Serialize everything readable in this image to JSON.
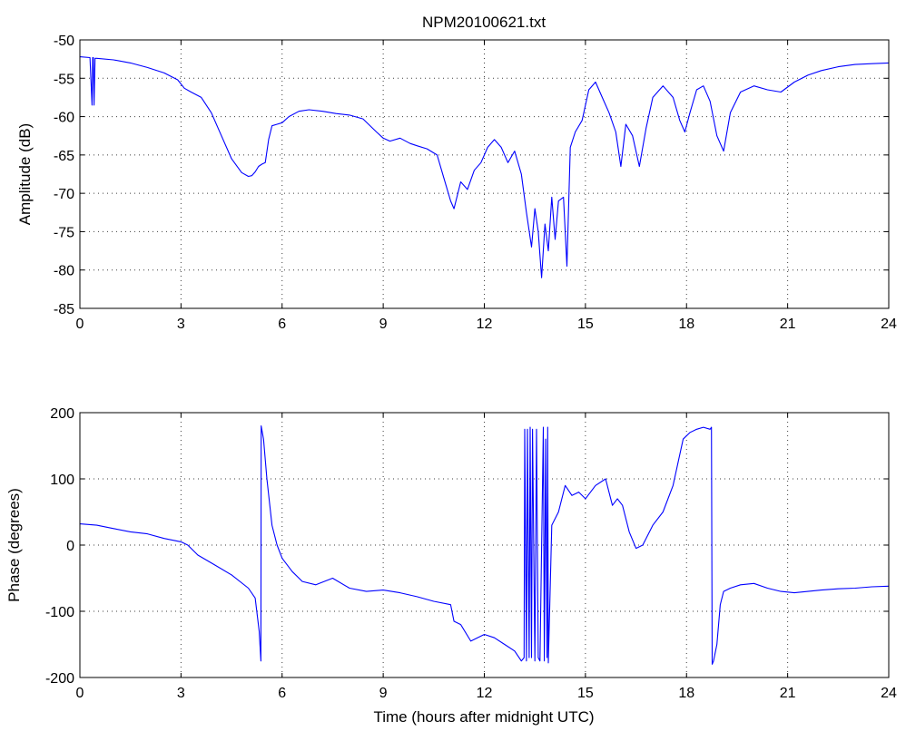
{
  "title": "NPM20100621.txt",
  "colors": {
    "series": "#0000ff",
    "axes": "#000000",
    "background": "#ffffff"
  },
  "chart_data": [
    {
      "type": "line",
      "title": "NPM20100621.txt",
      "xlabel": "",
      "ylabel": "Amplitude (dB)",
      "xlim": [
        0,
        24
      ],
      "ylim": [
        -85,
        -50
      ],
      "xticks": [
        "0",
        "3",
        "6",
        "9",
        "12",
        "15",
        "18",
        "21",
        "24"
      ],
      "yticks": [
        "-50",
        "-55",
        "-60",
        "-65",
        "-70",
        "-75",
        "-80",
        "-85"
      ],
      "grid": true,
      "series": [
        {
          "x": [
            0,
            0.3,
            0.36,
            0.38,
            0.4,
            0.42,
            0.45,
            0.5,
            1,
            1.5,
            2,
            2.5,
            2.9,
            3.1,
            3.3,
            3.6,
            3.9,
            4.2,
            4.5,
            4.8,
            5.0,
            5.1,
            5.2,
            5.3,
            5.4,
            5.5,
            5.6,
            5.7,
            5.85,
            6.0,
            6.2,
            6.5,
            6.8,
            7.2,
            7.6,
            8.0,
            8.4,
            8.8,
            9.0,
            9.2,
            9.5,
            9.8,
            10.0,
            10.3,
            10.6,
            10.8,
            11.0,
            11.1,
            11.3,
            11.5,
            11.7,
            11.9,
            12.1,
            12.3,
            12.5,
            12.7,
            12.9,
            13.1,
            13.25,
            13.4,
            13.5,
            13.6,
            13.7,
            13.8,
            13.9,
            14.0,
            14.1,
            14.2,
            14.35,
            14.45,
            14.55,
            14.7,
            14.9,
            15.1,
            15.3,
            15.5,
            15.7,
            15.9,
            16.05,
            16.2,
            16.4,
            16.6,
            16.8,
            17.0,
            17.3,
            17.6,
            17.8,
            17.95,
            18.1,
            18.3,
            18.5,
            18.7,
            18.9,
            19.1,
            19.3,
            19.6,
            20.0,
            20.4,
            20.8,
            21.2,
            21.6,
            22.0,
            22.5,
            23.0,
            23.5,
            24.0
          ],
          "y": [
            -52.2,
            -52.3,
            -58.5,
            -52.3,
            -52.3,
            -58.5,
            -52.4,
            -52.4,
            -52.6,
            -53.0,
            -53.6,
            -54.3,
            -55.2,
            -56.3,
            -56.8,
            -57.5,
            -59.5,
            -62.5,
            -65.5,
            -67.3,
            -67.8,
            -67.7,
            -67.2,
            -66.5,
            -66.2,
            -66.0,
            -63.0,
            -61.2,
            -61.0,
            -60.8,
            -60.0,
            -59.3,
            -59.1,
            -59.3,
            -59.6,
            -59.8,
            -60.3,
            -62.0,
            -62.8,
            -63.2,
            -62.8,
            -63.5,
            -63.8,
            -64.2,
            -65.0,
            -68.0,
            -71.0,
            -72.0,
            -68.5,
            -69.5,
            -67.0,
            -66.0,
            -64.0,
            -63.0,
            -64.0,
            -66.0,
            -64.5,
            -67.5,
            -72.5,
            -77.0,
            -72.0,
            -75.0,
            -81.0,
            -74.0,
            -77.5,
            -70.5,
            -76.0,
            -71.0,
            -70.5,
            -79.5,
            -64.0,
            -62.0,
            -60.5,
            -56.5,
            -55.5,
            -57.5,
            -59.5,
            -62.0,
            -66.5,
            -61.0,
            -62.5,
            -66.5,
            -61.5,
            -57.5,
            -56.0,
            -57.5,
            -60.5,
            -62.0,
            -59.5,
            -56.5,
            -56.0,
            -58.0,
            -62.5,
            -64.5,
            -59.5,
            -56.8,
            -56.0,
            -56.5,
            -56.8,
            -55.5,
            -54.6,
            -54.0,
            -53.5,
            -53.2,
            -53.1,
            -53.0
          ]
        }
      ]
    },
    {
      "type": "line",
      "title": "",
      "xlabel": "Time (hours after midnight UTC)",
      "ylabel": "Phase (degrees)",
      "xlim": [
        0,
        24
      ],
      "ylim": [
        -200,
        200
      ],
      "xticks": [
        "0",
        "3",
        "6",
        "9",
        "12",
        "15",
        "18",
        "21",
        "24"
      ],
      "yticks": [
        "200",
        "100",
        "0",
        "-100",
        "-200"
      ],
      "grid": true,
      "series": [
        {
          "x": [
            0,
            0.5,
            1,
            1.5,
            2,
            2.5,
            3.0,
            3.2,
            3.5,
            4.0,
            4.5,
            5.0,
            5.2,
            5.32,
            5.37,
            5.38,
            5.45,
            5.55,
            5.7,
            5.85,
            6.0,
            6.3,
            6.6,
            7.0,
            7.5,
            8.0,
            8.5,
            9.0,
            9.5,
            10.0,
            10.5,
            11.0,
            11.1,
            11.3,
            11.6,
            12.0,
            12.3,
            12.6,
            12.9,
            13.1,
            13.18,
            13.2,
            13.25,
            13.28,
            13.33,
            13.36,
            13.4,
            13.43,
            13.5,
            13.55,
            13.6,
            13.65,
            13.75,
            13.78,
            13.82,
            13.86,
            13.88,
            13.9,
            14.0,
            14.2,
            14.4,
            14.6,
            14.8,
            15.0,
            15.3,
            15.6,
            15.8,
            15.95,
            16.1,
            16.3,
            16.5,
            16.7,
            16.8,
            17.0,
            17.3,
            17.6,
            17.9,
            18.1,
            18.3,
            18.5,
            18.7,
            18.74,
            18.76,
            18.8,
            18.9,
            19.0,
            19.1,
            19.3,
            19.6,
            20.0,
            20.4,
            20.8,
            21.2,
            21.6,
            22.0,
            22.5,
            23.0,
            23.5,
            24.0
          ],
          "y": [
            32,
            30,
            25,
            20,
            17,
            10,
            5,
            0,
            -15,
            -30,
            -45,
            -65,
            -80,
            -130,
            -175,
            180,
            160,
            100,
            30,
            0,
            -20,
            -40,
            -55,
            -60,
            -50,
            -65,
            -70,
            -68,
            -72,
            -78,
            -85,
            -90,
            -115,
            -120,
            -145,
            -135,
            -140,
            -150,
            -160,
            -175,
            -170,
            175,
            -175,
            175,
            -170,
            178,
            -170,
            175,
            -175,
            175,
            -170,
            -175,
            178,
            -175,
            160,
            -170,
            178,
            -178,
            30,
            50,
            90,
            75,
            80,
            70,
            90,
            100,
            60,
            70,
            60,
            20,
            -5,
            0,
            10,
            30,
            50,
            90,
            160,
            170,
            175,
            178,
            175,
            178,
            -180,
            -175,
            -150,
            -90,
            -70,
            -65,
            -60,
            -58,
            -65,
            -70,
            -72,
            -70,
            -68,
            -66,
            -65,
            -63,
            -62
          ]
        }
      ]
    }
  ]
}
